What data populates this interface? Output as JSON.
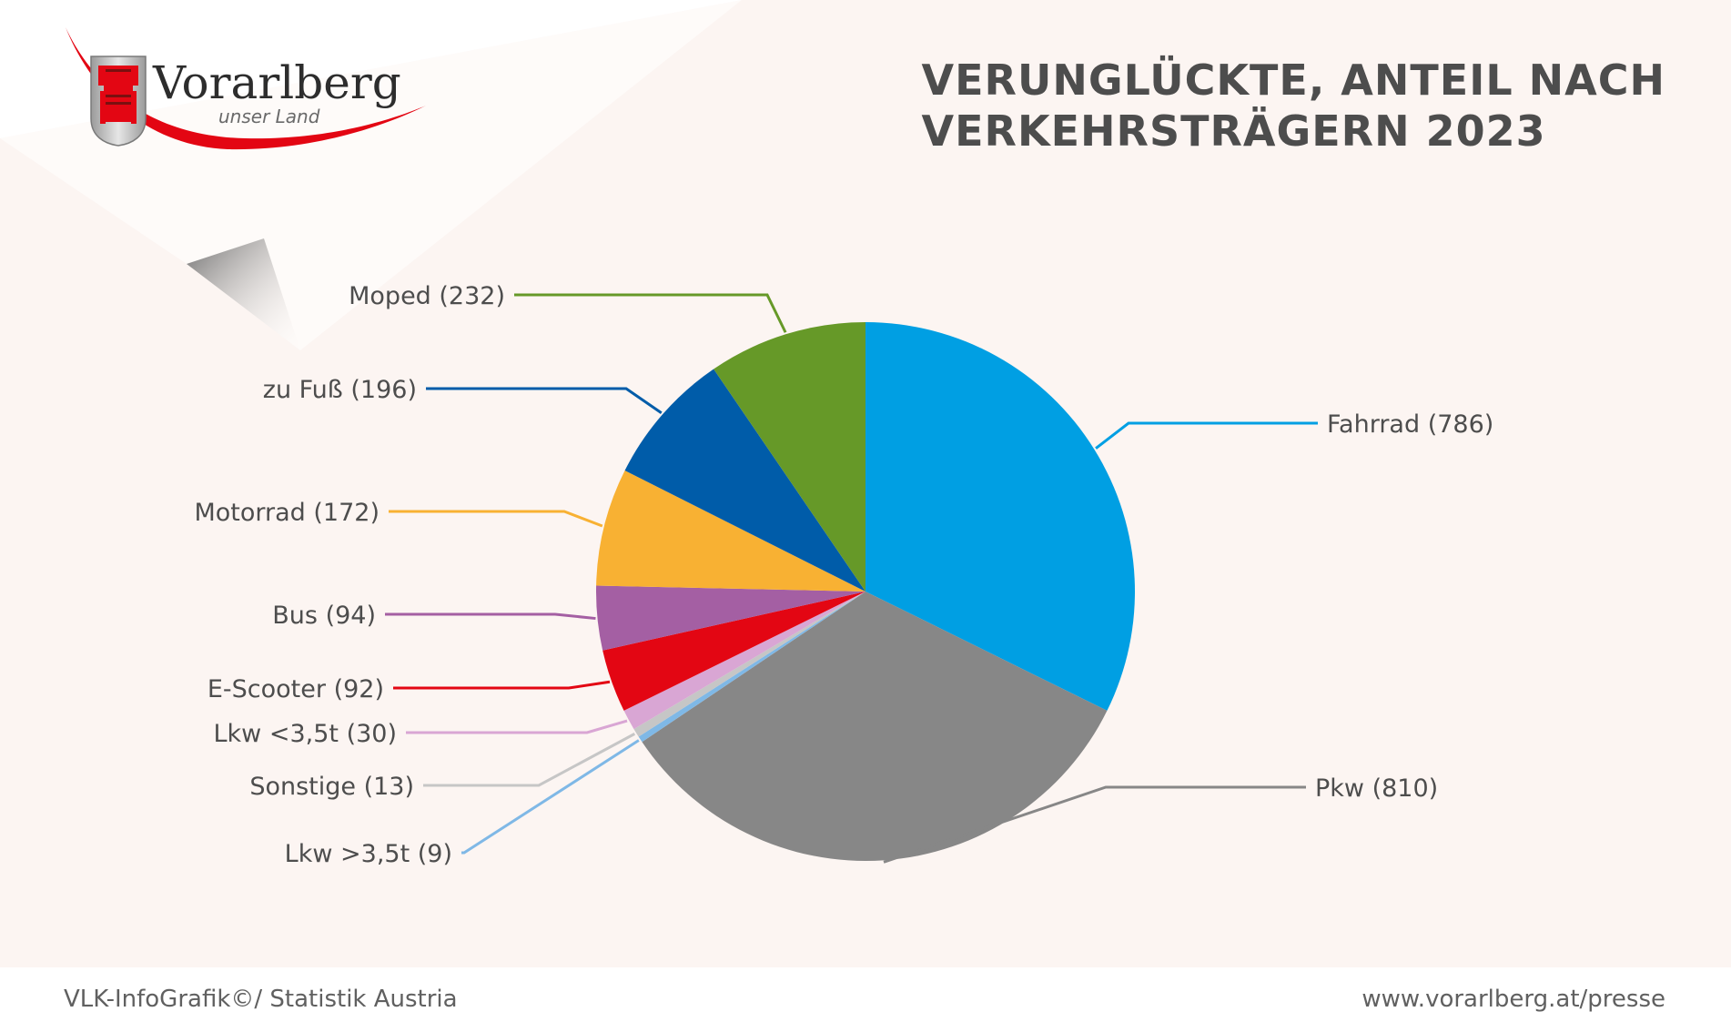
{
  "header": {
    "brand_name": "Vorarlberg",
    "brand_subtitle": "unser Land",
    "title_line1": "VERUNGLÜCKTE, ANTEIL NACH",
    "title_line2": "VERKEHRSTRÄGERN 2023"
  },
  "footer": {
    "source": "VLK-InfoGrafik©/ Statistik Austria",
    "url": "www.vorarlberg.at/presse"
  },
  "colors": {
    "background": "#fcf5f2",
    "brand_red": "#e30613",
    "title_gray": "#4d4d4d"
  },
  "chart_data": {
    "type": "pie",
    "title": "VERUNGLÜCKTE, ANTEIL NACH VERKEHRSTRÄGERN 2023",
    "legend": "none",
    "slices": [
      {
        "name": "Fahrrad",
        "value": 786,
        "label": "Fahrrad (786)",
        "color": "#009fe3"
      },
      {
        "name": "Pkw",
        "value": 810,
        "label": "Pkw (810)",
        "color": "#878787"
      },
      {
        "name": "Lkw >3,5t",
        "value": 9,
        "label": "Lkw >3,5t (9)",
        "color": "#7fb8e6"
      },
      {
        "name": "Sonstige",
        "value": 13,
        "label": "Sonstige (13)",
        "color": "#c6c6c6"
      },
      {
        "name": "Lkw <3,5t",
        "value": 30,
        "label": "Lkw <3,5t (30)",
        "color": "#d9a6d4"
      },
      {
        "name": "E-Scooter",
        "value": 92,
        "label": "E-Scooter (92)",
        "color": "#e30613"
      },
      {
        "name": "Bus",
        "value": 94,
        "label": "Bus (94)",
        "color": "#a45fa3"
      },
      {
        "name": "Motorrad",
        "value": 172,
        "label": "Motorrad (172)",
        "color": "#f8b133"
      },
      {
        "name": "zu Fuß",
        "value": 196,
        "label": "zu Fuß (196)",
        "color": "#005ca9"
      },
      {
        "name": "Moped",
        "value": 232,
        "label": "Moped (232)",
        "color": "#669928"
      }
    ]
  }
}
